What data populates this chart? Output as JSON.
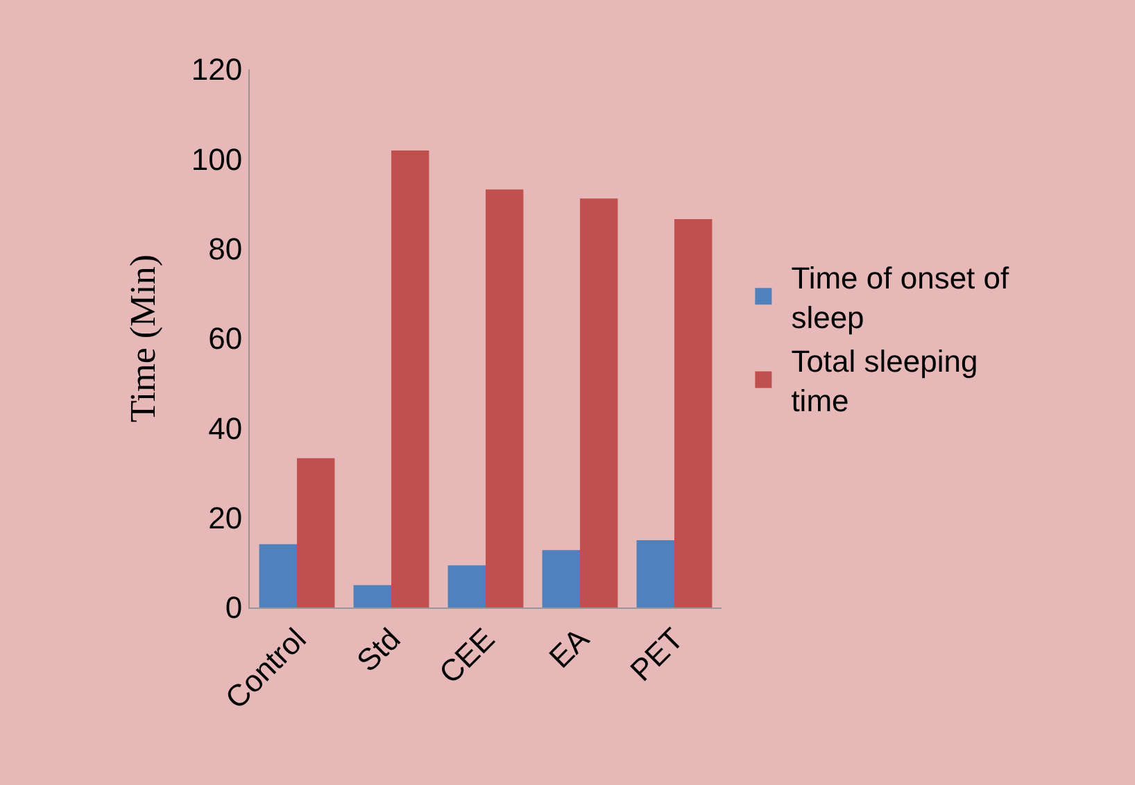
{
  "chart_data": {
    "type": "bar",
    "ylabel": "Time (Min)",
    "categories": [
      "Control",
      "Std",
      "CEE",
      "EA",
      "PET"
    ],
    "series": [
      {
        "name": "Time of onset of sleep",
        "color": "#4f81bd",
        "values": [
          14.1,
          5.0,
          9.4,
          12.8,
          15.0
        ]
      },
      {
        "name": "Total sleeping time",
        "color": "#c0504d",
        "values": [
          33.3,
          101.9,
          93.2,
          91.2,
          86.6
        ]
      }
    ],
    "ylim": [
      0,
      120
    ],
    "yticks": [
      0,
      20,
      40,
      60,
      80,
      100,
      120
    ],
    "grid": false,
    "legend": "right"
  }
}
